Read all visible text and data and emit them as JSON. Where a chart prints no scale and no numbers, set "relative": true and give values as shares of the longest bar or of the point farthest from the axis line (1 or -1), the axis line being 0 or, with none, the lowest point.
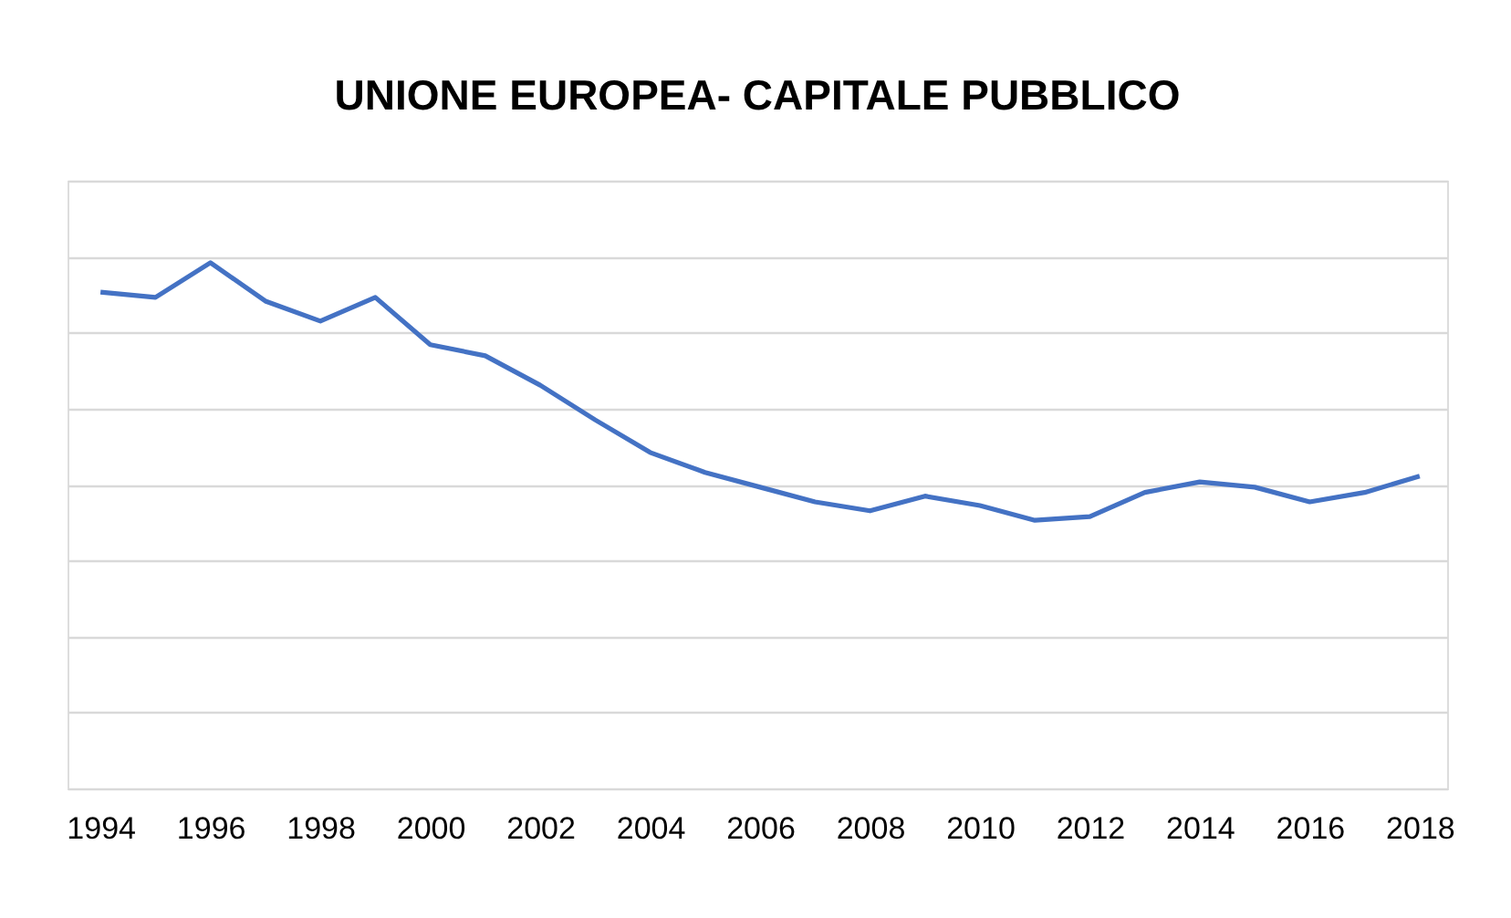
{
  "chart_data": {
    "type": "line",
    "title": "UNIONE EUROPEA- CAPITALE PUBBLICO",
    "relative": true,
    "x": [
      1994,
      1995,
      1996,
      1997,
      1998,
      1999,
      2000,
      2001,
      2002,
      2003,
      2004,
      2005,
      2006,
      2007,
      2008,
      2009,
      2010,
      2011,
      2012,
      2013,
      2014,
      2015,
      2016,
      2017,
      2018
    ],
    "xlim": [
      1993.4,
      2018.5
    ],
    "xticks": [
      1994,
      1996,
      1998,
      2000,
      2002,
      2004,
      2006,
      2008,
      2010,
      2012,
      2014,
      2016,
      2018
    ],
    "series": [
      {
        "color": "#4472c4",
        "values": [
          0.944,
          0.934,
          1,
          0.927,
          0.889,
          0.934,
          0.844,
          0.823,
          0.767,
          0.701,
          0.639,
          0.601,
          0.573,
          0.545,
          0.528,
          0.556,
          0.538,
          0.51,
          0.517,
          0.563,
          0.583,
          0.573,
          0.545,
          0.563,
          0.594
        ]
      }
    ],
    "grid": "y",
    "legend": false,
    "marker": "none",
    "line_style": "solid"
  }
}
